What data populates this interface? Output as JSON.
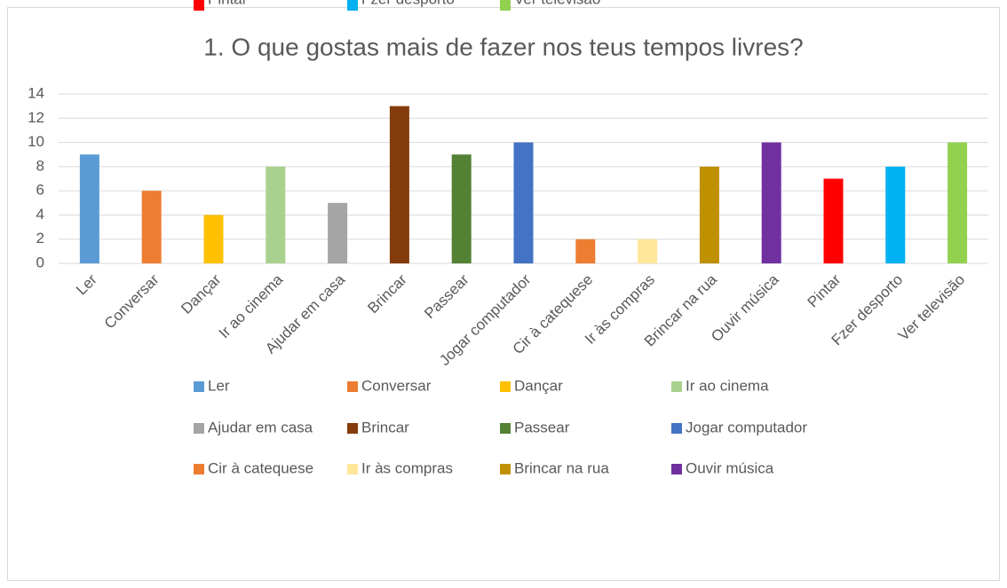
{
  "chart_data": {
    "type": "bar",
    "title": "1. O que gostas mais de fazer nos teus tempos livres?",
    "categories": [
      "Ler",
      "Conversar",
      "Dançar",
      "Ir ao cinema",
      "Ajudar em casa",
      "Brincar",
      "Passear",
      "Jogar computador",
      "Cir à catequese",
      "Ir às compras",
      "Brincar na rua",
      "Ouvir música",
      "Pintar",
      "Fzer desporto",
      "Ver televisão"
    ],
    "values": [
      9,
      6,
      4,
      8,
      5,
      13,
      9,
      10,
      2,
      2,
      8,
      10,
      7,
      8,
      10
    ],
    "colors": [
      "#5b9bd5",
      "#ed7d31",
      "#ffc000",
      "#a9d18e",
      "#a5a5a5",
      "#843c0c",
      "#548235",
      "#4472c4",
      "#ed7d31",
      "#ffe699",
      "#bf9000",
      "#7030a0",
      "#ff0000",
      "#00b0f0",
      "#92d050"
    ],
    "ylim": [
      0,
      14
    ],
    "yticks": [
      0,
      2,
      4,
      6,
      8,
      10,
      12,
      14
    ],
    "grid": true,
    "legend": "bottom"
  }
}
